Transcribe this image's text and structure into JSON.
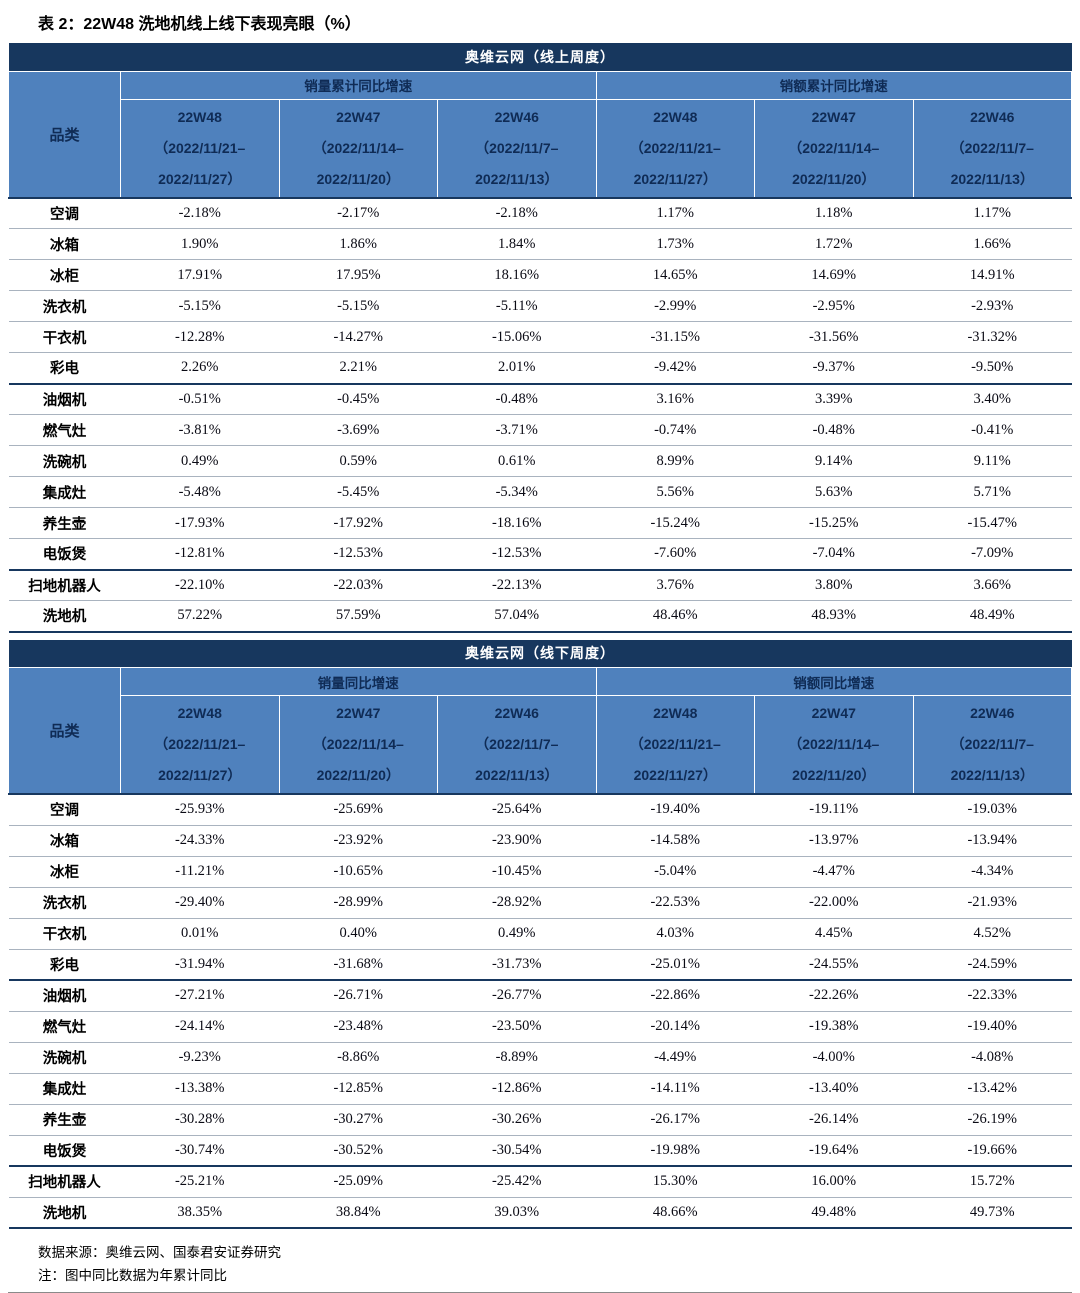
{
  "title": "表 2：22W48 洗地机线上线下表现亮眼（%）",
  "colors": {
    "band_bg": "#17375E",
    "band_text": "#FFFFFF",
    "header_bg": "#4F81BD",
    "header_text": "#0F2B55",
    "section_line": "#17375E"
  },
  "tables": [
    {
      "id": "online-weekly",
      "title": "奥维云网（线上周度）",
      "category_header": "品类",
      "group_headers": [
        "销量累计同比增速",
        "销额累计同比增速"
      ],
      "columns": [
        [
          "22W48",
          "（2022/11/21–",
          "2022/11/27）"
        ],
        [
          "22W47",
          "（2022/11/14–",
          "2022/11/20）"
        ],
        [
          "22W46",
          "（2022/11/7–",
          "2022/11/13）"
        ],
        [
          "22W48",
          "（2022/11/21–",
          "2022/11/27）"
        ],
        [
          "22W47",
          "（2022/11/14–",
          "2022/11/20）"
        ],
        [
          "22W46",
          "（2022/11/7–",
          "2022/11/13）"
        ]
      ],
      "separator_after": [
        5,
        11
      ],
      "rows": [
        {
          "category": "空调",
          "values": [
            "-2.18%",
            "-2.17%",
            "-2.18%",
            "1.17%",
            "1.18%",
            "1.17%"
          ]
        },
        {
          "category": "冰箱",
          "values": [
            "1.90%",
            "1.86%",
            "1.84%",
            "1.73%",
            "1.72%",
            "1.66%"
          ]
        },
        {
          "category": "冰柜",
          "values": [
            "17.91%",
            "17.95%",
            "18.16%",
            "14.65%",
            "14.69%",
            "14.91%"
          ]
        },
        {
          "category": "洗衣机",
          "values": [
            "-5.15%",
            "-5.15%",
            "-5.11%",
            "-2.99%",
            "-2.95%",
            "-2.93%"
          ]
        },
        {
          "category": "干衣机",
          "values": [
            "-12.28%",
            "-14.27%",
            "-15.06%",
            "-31.15%",
            "-31.56%",
            "-31.32%"
          ]
        },
        {
          "category": "彩电",
          "values": [
            "2.26%",
            "2.21%",
            "2.01%",
            "-9.42%",
            "-9.37%",
            "-9.50%"
          ]
        },
        {
          "category": "油烟机",
          "values": [
            "-0.51%",
            "-0.45%",
            "-0.48%",
            "3.16%",
            "3.39%",
            "3.40%"
          ]
        },
        {
          "category": "燃气灶",
          "values": [
            "-3.81%",
            "-3.69%",
            "-3.71%",
            "-0.74%",
            "-0.48%",
            "-0.41%"
          ]
        },
        {
          "category": "洗碗机",
          "values": [
            "0.49%",
            "0.59%",
            "0.61%",
            "8.99%",
            "9.14%",
            "9.11%"
          ]
        },
        {
          "category": "集成灶",
          "values": [
            "-5.48%",
            "-5.45%",
            "-5.34%",
            "5.56%",
            "5.63%",
            "5.71%"
          ]
        },
        {
          "category": "养生壶",
          "values": [
            "-17.93%",
            "-17.92%",
            "-18.16%",
            "-15.24%",
            "-15.25%",
            "-15.47%"
          ]
        },
        {
          "category": "电饭煲",
          "values": [
            "-12.81%",
            "-12.53%",
            "-12.53%",
            "-7.60%",
            "-7.04%",
            "-7.09%"
          ]
        },
        {
          "category": "扫地机器人",
          "values": [
            "-22.10%",
            "-22.03%",
            "-22.13%",
            "3.76%",
            "3.80%",
            "3.66%"
          ]
        },
        {
          "category": "洗地机",
          "values": [
            "57.22%",
            "57.59%",
            "57.04%",
            "48.46%",
            "48.93%",
            "48.49%"
          ]
        }
      ]
    },
    {
      "id": "offline-weekly",
      "title": "奥维云网（线下周度）",
      "category_header": "品类",
      "group_headers": [
        "销量同比增速",
        "销额同比增速"
      ],
      "columns": [
        [
          "22W48",
          "（2022/11/21–",
          "2022/11/27）"
        ],
        [
          "22W47",
          "（2022/11/14–",
          "2022/11/20）"
        ],
        [
          "22W46",
          "（2022/11/7–",
          "2022/11/13）"
        ],
        [
          "22W48",
          "（2022/11/21–",
          "2022/11/27）"
        ],
        [
          "22W47",
          "（2022/11/14–",
          "2022/11/20）"
        ],
        [
          "22W46",
          "（2022/11/7–",
          "2022/11/13）"
        ]
      ],
      "separator_after": [
        5,
        11
      ],
      "rows": [
        {
          "category": "空调",
          "values": [
            "-25.93%",
            "-25.69%",
            "-25.64%",
            "-19.40%",
            "-19.11%",
            "-19.03%"
          ]
        },
        {
          "category": "冰箱",
          "values": [
            "-24.33%",
            "-23.92%",
            "-23.90%",
            "-14.58%",
            "-13.97%",
            "-13.94%"
          ]
        },
        {
          "category": "冰柜",
          "values": [
            "-11.21%",
            "-10.65%",
            "-10.45%",
            "-5.04%",
            "-4.47%",
            "-4.34%"
          ]
        },
        {
          "category": "洗衣机",
          "values": [
            "-29.40%",
            "-28.99%",
            "-28.92%",
            "-22.53%",
            "-22.00%",
            "-21.93%"
          ]
        },
        {
          "category": "干衣机",
          "values": [
            "0.01%",
            "0.40%",
            "0.49%",
            "4.03%",
            "4.45%",
            "4.52%"
          ]
        },
        {
          "category": "彩电",
          "values": [
            "-31.94%",
            "-31.68%",
            "-31.73%",
            "-25.01%",
            "-24.55%",
            "-24.59%"
          ]
        },
        {
          "category": "油烟机",
          "values": [
            "-27.21%",
            "-26.71%",
            "-26.77%",
            "-22.86%",
            "-22.26%",
            "-22.33%"
          ]
        },
        {
          "category": "燃气灶",
          "values": [
            "-24.14%",
            "-23.48%",
            "-23.50%",
            "-20.14%",
            "-19.38%",
            "-19.40%"
          ]
        },
        {
          "category": "洗碗机",
          "values": [
            "-9.23%",
            "-8.86%",
            "-8.89%",
            "-4.49%",
            "-4.00%",
            "-4.08%"
          ]
        },
        {
          "category": "集成灶",
          "values": [
            "-13.38%",
            "-12.85%",
            "-12.86%",
            "-14.11%",
            "-13.40%",
            "-13.42%"
          ]
        },
        {
          "category": "养生壶",
          "values": [
            "-30.28%",
            "-30.27%",
            "-30.26%",
            "-26.17%",
            "-26.14%",
            "-26.19%"
          ]
        },
        {
          "category": "电饭煲",
          "values": [
            "-30.74%",
            "-30.52%",
            "-30.54%",
            "-19.98%",
            "-19.64%",
            "-19.66%"
          ]
        },
        {
          "category": "扫地机器人",
          "values": [
            "-25.21%",
            "-25.09%",
            "-25.42%",
            "15.30%",
            "16.00%",
            "15.72%"
          ]
        },
        {
          "category": "洗地机",
          "values": [
            "38.35%",
            "38.84%",
            "39.03%",
            "48.66%",
            "49.48%",
            "49.73%"
          ]
        }
      ]
    }
  ],
  "footer": {
    "source": "数据来源：奥维云网、国泰君安证券研究",
    "note": "注：图中同比数据为年累计同比"
  }
}
